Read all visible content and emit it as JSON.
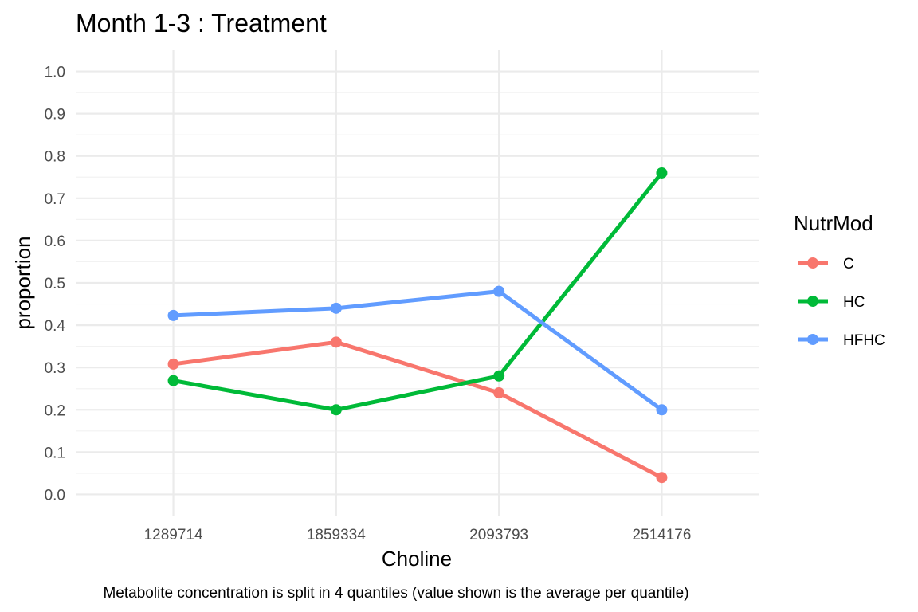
{
  "chart_data": {
    "type": "line",
    "title": "Month 1-3 : Treatment",
    "xlabel": "Choline",
    "ylabel": "proportion",
    "caption": "Metabolite concentration is split in 4 quantiles (value shown is the average per quantile)",
    "categories": [
      "1289714",
      "1859334",
      "2093793",
      "2514176"
    ],
    "ylim": [
      -0.05,
      1.05
    ],
    "yticks": [
      "0.0",
      "0.1",
      "0.2",
      "0.3",
      "0.4",
      "0.5",
      "0.6",
      "0.7",
      "0.8",
      "0.9",
      "1.0"
    ],
    "grid": true,
    "legend": {
      "title": "NutrMod",
      "position": "right"
    },
    "series": [
      {
        "name": "C",
        "color": "#F8766D",
        "values": [
          0.308,
          0.36,
          0.24,
          0.04
        ]
      },
      {
        "name": "HC",
        "color": "#00BA38",
        "values": [
          0.269,
          0.2,
          0.28,
          0.76
        ]
      },
      {
        "name": "HFHC",
        "color": "#619CFF",
        "values": [
          0.423,
          0.44,
          0.48,
          0.2
        ]
      }
    ]
  }
}
